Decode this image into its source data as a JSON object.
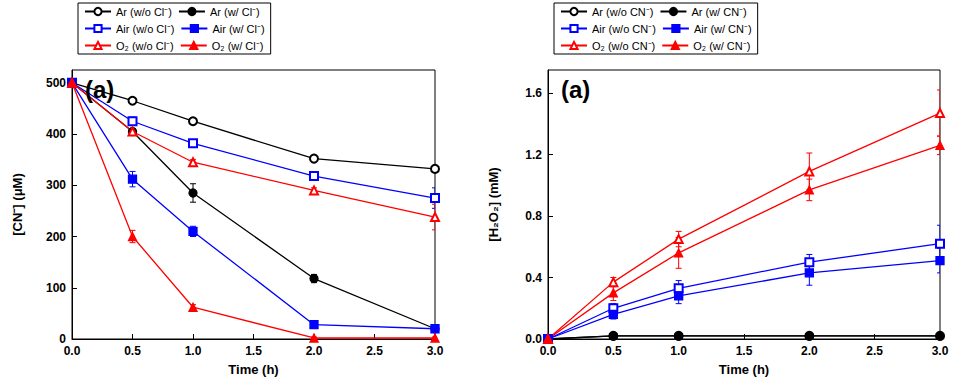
{
  "chart_data": [
    {
      "type": "line",
      "title": "(a)",
      "x_label": "Time (h)",
      "y_label": "[CN⁻] (μM)",
      "x": [
        0,
        0.5,
        1,
        2,
        3
      ],
      "xlim": [
        0,
        3
      ],
      "xticks": [
        {
          "value": 0,
          "label": "0.0"
        },
        0.5,
        {
          "value": 1,
          "label": "1.0"
        },
        1.5,
        {
          "value": 2,
          "label": "2.0"
        },
        2.5,
        {
          "value": 3,
          "label": "3.0"
        }
      ],
      "ylim": [
        0,
        525
      ],
      "yticks": [
        0,
        100,
        200,
        300,
        400,
        500
      ],
      "grid": false,
      "legend": "top",
      "series": [
        {
          "name": "Ar (w/o Cl⁻)",
          "color": "#000000",
          "marker": "open-circle",
          "line_style": "solid",
          "values": [
            500,
            465,
            425,
            352,
            332
          ],
          "errors": [
            0,
            5,
            5,
            5,
            5
          ]
        },
        {
          "name": "Ar (w/ Cl⁻)",
          "color": "#000000",
          "marker": "filled-circle",
          "line_style": "solid",
          "values": [
            500,
            405,
            285,
            118,
            20
          ],
          "errors": [
            0,
            5,
            18,
            8,
            5
          ]
        },
        {
          "name": "Air (w/o Cl⁻)",
          "color": "#0000ff",
          "marker": "open-square",
          "line_style": "solid",
          "values": [
            500,
            425,
            382,
            318,
            275
          ],
          "errors": [
            0,
            8,
            5,
            5,
            20
          ]
        },
        {
          "name": "Air (w/ Cl⁻)",
          "color": "#0000ff",
          "marker": "filled-square",
          "line_style": "solid",
          "values": [
            500,
            312,
            210,
            28,
            20
          ],
          "errors": [
            0,
            15,
            10,
            5,
            5
          ]
        },
        {
          "name": "O₂ (w/o Cl⁻)",
          "color": "#ff0000",
          "marker": "open-triangle",
          "line_style": "solid",
          "values": [
            500,
            405,
            345,
            290,
            238
          ],
          "errors": [
            0,
            5,
            5,
            5,
            25
          ]
        },
        {
          "name": "O₂ (w/ Cl⁻)",
          "color": "#ff0000",
          "marker": "filled-triangle",
          "line_style": "solid",
          "values": [
            500,
            200,
            62,
            2,
            2
          ],
          "errors": [
            0,
            12,
            5,
            2,
            2
          ]
        }
      ]
    },
    {
      "type": "line",
      "title": "(a)",
      "x_label": "Time (h)",
      "y_label": "[H₂O₂] (mM)",
      "x": [
        0,
        0.5,
        1,
        2,
        3
      ],
      "xlim": [
        0,
        3
      ],
      "xticks": [
        {
          "value": 0,
          "label": "0.0"
        },
        0.5,
        {
          "value": 1,
          "label": "1.0"
        },
        1.5,
        {
          "value": 2,
          "label": "2.0"
        },
        2.5,
        {
          "value": 3,
          "label": "3.0"
        }
      ],
      "ylim": [
        0,
        1.75
      ],
      "yticks": [
        {
          "value": 0,
          "label": "0.0"
        },
        0.4,
        0.8,
        1.2,
        1.6
      ],
      "grid": false,
      "legend": "top",
      "series": [
        {
          "name": "Ar (w/o CN⁻)",
          "color": "#000000",
          "marker": "open-circle",
          "line_style": "solid",
          "values": [
            0,
            0.02,
            0.02,
            0.02,
            0.02
          ],
          "errors": [
            0,
            0,
            0,
            0,
            0
          ]
        },
        {
          "name": "Ar (w/ CN⁻)",
          "color": "#000000",
          "marker": "filled-circle",
          "line_style": "solid",
          "values": [
            0,
            0.02,
            0.02,
            0.02,
            0.02
          ],
          "errors": [
            0,
            0,
            0,
            0,
            0
          ]
        },
        {
          "name": "Air (w/o CN⁻)",
          "color": "#0000ff",
          "marker": "open-square",
          "line_style": "solid",
          "values": [
            0,
            0.2,
            0.33,
            0.5,
            0.62
          ],
          "errors": [
            0,
            0.03,
            0.05,
            0.05,
            0.12
          ]
        },
        {
          "name": "Air (w/ CN⁻)",
          "color": "#0000ff",
          "marker": "filled-square",
          "line_style": "solid",
          "values": [
            0,
            0.16,
            0.28,
            0.43,
            0.51
          ],
          "errors": [
            0,
            0.03,
            0.05,
            0.08,
            0.08
          ]
        },
        {
          "name": "O₂ (w/o CN⁻)",
          "color": "#ff0000",
          "marker": "open-triangle",
          "line_style": "solid",
          "values": [
            0,
            0.37,
            0.65,
            1.09,
            1.47
          ],
          "errors": [
            0,
            0.03,
            0.05,
            0.12,
            0.15
          ]
        },
        {
          "name": "O₂ (w/ CN⁻)",
          "color": "#ff0000",
          "marker": "filled-triangle",
          "line_style": "solid",
          "values": [
            0,
            0.3,
            0.56,
            0.97,
            1.26
          ],
          "errors": [
            0,
            0.05,
            0.1,
            0.07,
            0.06
          ]
        }
      ]
    }
  ]
}
